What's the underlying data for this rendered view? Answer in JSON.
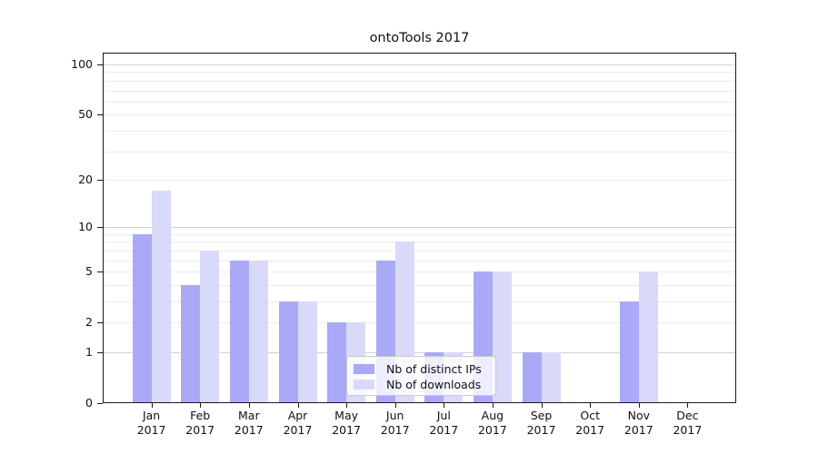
{
  "chart_data": {
    "type": "bar",
    "title": "ontoTools 2017",
    "categories": [
      "Jan",
      "Feb",
      "Mar",
      "Apr",
      "May",
      "Jun",
      "Jul",
      "Aug",
      "Sep",
      "Oct",
      "Nov",
      "Dec"
    ],
    "year_label": "2017",
    "series": [
      {
        "name": "Nb of distinct IPs",
        "color": "#a9a9f7",
        "values": [
          9,
          4,
          6,
          3,
          2,
          6,
          1,
          5,
          1,
          0,
          3,
          0
        ]
      },
      {
        "name": "Nb of downloads",
        "color": "#d9d9f9",
        "values": [
          17,
          7,
          6,
          3,
          2,
          8,
          1,
          5,
          1,
          0,
          5,
          0
        ]
      }
    ],
    "scale": "log1p",
    "ylim": [
      0,
      118
    ],
    "y_ticks": [
      100,
      50,
      20,
      10,
      5,
      2,
      1,
      0
    ],
    "grid_minor_values": [
      2,
      3,
      4,
      5,
      6,
      7,
      8,
      9,
      20,
      30,
      40,
      50,
      60,
      70,
      80,
      90
    ],
    "grid_major_values": [
      1,
      10,
      100
    ],
    "legend_position": "lower center",
    "colors": {
      "grid_minor": "#ebebeb",
      "grid_major": "#d2d2d2",
      "spine": "#1a1a1a",
      "text": "#111111",
      "legend_border": "#cccccc"
    }
  }
}
